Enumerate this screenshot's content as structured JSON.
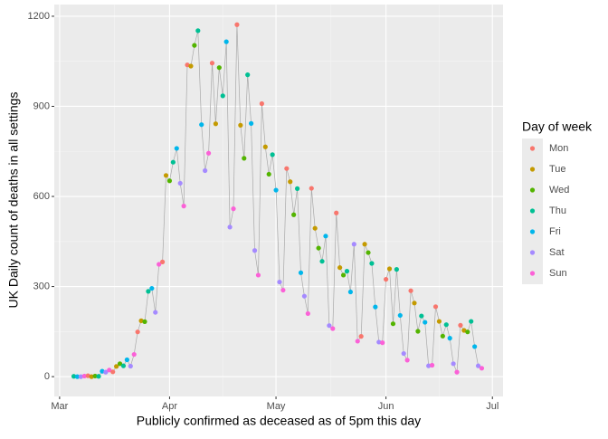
{
  "chart_data": {
    "type": "scatter",
    "x_label": "Publicly confirmed as deceased as of 5pm this day",
    "y_label": "UK Daily count of deaths in all settings",
    "x": [
      65,
      66,
      67,
      68,
      69,
      70,
      71,
      72,
      73,
      74,
      75,
      76,
      77,
      78,
      79,
      80,
      81,
      82,
      83,
      84,
      85,
      86,
      87,
      88,
      89,
      90,
      91,
      92,
      93,
      94,
      95,
      96,
      97,
      98,
      99,
      100,
      101,
      102,
      103,
      104,
      105,
      106,
      107,
      108,
      109,
      110,
      111,
      112,
      113,
      114,
      115,
      116,
      117,
      118,
      119,
      120,
      121,
      122,
      123,
      124,
      125,
      126,
      127,
      128,
      129,
      130,
      131,
      132,
      133,
      134,
      135,
      136,
      137,
      138,
      139,
      140,
      141,
      142,
      143,
      144,
      145,
      146,
      147,
      148,
      149,
      150,
      151,
      152,
      153,
      154,
      155,
      156,
      157,
      158,
      159,
      160,
      161,
      162,
      163,
      164,
      165,
      166,
      167,
      168,
      169,
      170,
      171,
      172,
      173,
      174,
      175,
      176,
      177,
      178,
      179,
      180
    ],
    "values": [
      1,
      0,
      0,
      2,
      3,
      0,
      2,
      1,
      18,
      15,
      22,
      16,
      34,
      43,
      36,
      56,
      35,
      74,
      149,
      186,
      183,
      284,
      294,
      214,
      374,
      382,
      670,
      652,
      714,
      760,
      644,
      568,
      1038,
      1034,
      1103,
      1152,
      839,
      686,
      744,
      1044,
      842,
      1029,
      935,
      1115,
      498,
      559,
      1172,
      837,
      727,
      1005,
      843,
      420,
      338,
      909,
      765,
      674,
      739,
      621,
      315,
      288,
      693,
      649,
      539,
      626,
      346,
      268,
      210,
      627,
      494,
      428,
      384,
      468,
      170,
      160,
      545,
      363,
      338,
      351,
      282,
      441,
      118,
      134,
      441,
      413,
      377,
      232,
      115,
      113,
      324,
      359,
      176,
      357,
      204,
      77,
      55,
      286,
      245,
      151,
      202,
      181,
      36,
      38,
      233,
      184,
      135,
      173,
      128,
      43,
      15,
      171,
      154,
      149,
      184,
      100,
      36,
      28
    ],
    "line_color": "#a9a9a9",
    "xlim": [
      59.5,
      186
    ],
    "ylim": [
      -66,
      1239
    ],
    "xticks": [
      {
        "value": 61,
        "label": "Mar"
      },
      {
        "value": 92,
        "label": "Apr"
      },
      {
        "value": 122,
        "label": "May"
      },
      {
        "value": 153,
        "label": "Jun"
      },
      {
        "value": 183,
        "label": "Jul"
      }
    ],
    "yticks": [
      0,
      300,
      600,
      900,
      1200
    ],
    "grid": true,
    "legend": {
      "title": "Day of week",
      "position": "right",
      "entries": [
        {
          "name": "Mon",
          "color": "#F8766D"
        },
        {
          "name": "Tue",
          "color": "#C49A00"
        },
        {
          "name": "Wed",
          "color": "#53B400"
        },
        {
          "name": "Thu",
          "color": "#00C094"
        },
        {
          "name": "Fri",
          "color": "#00B6EB"
        },
        {
          "name": "Sat",
          "color": "#A58AFF"
        },
        {
          "name": "Sun",
          "color": "#FB61D7"
        }
      ]
    }
  }
}
